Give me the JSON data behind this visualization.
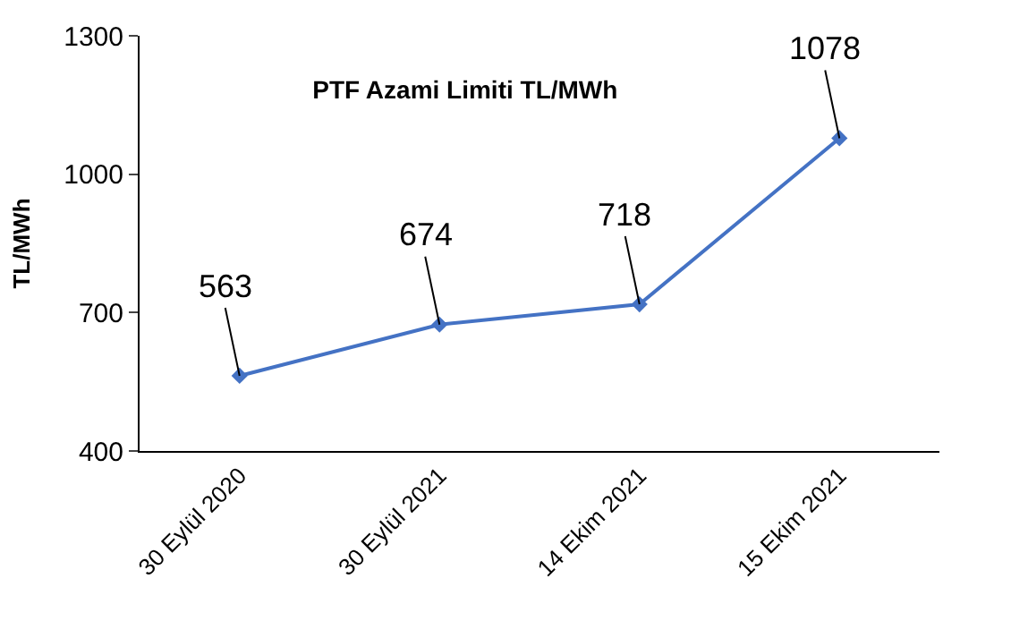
{
  "chart_data": {
    "type": "line",
    "title": "PTF Azami Limiti TL/MWh",
    "ylabel": "TL/MWh",
    "categories": [
      "30 Eylül 2020",
      "30 Eylül 2021",
      "14 Ekim 2021",
      "15 Ekim 2021"
    ],
    "series": [
      {
        "color": "#4472c4",
        "values": [
          563,
          674,
          718,
          1078
        ]
      }
    ],
    "ylim": [
      400,
      1300
    ],
    "yticks": [
      400,
      700,
      1000,
      1300
    ],
    "data_labels": true,
    "marker": "diamond",
    "line_style": "solid"
  }
}
